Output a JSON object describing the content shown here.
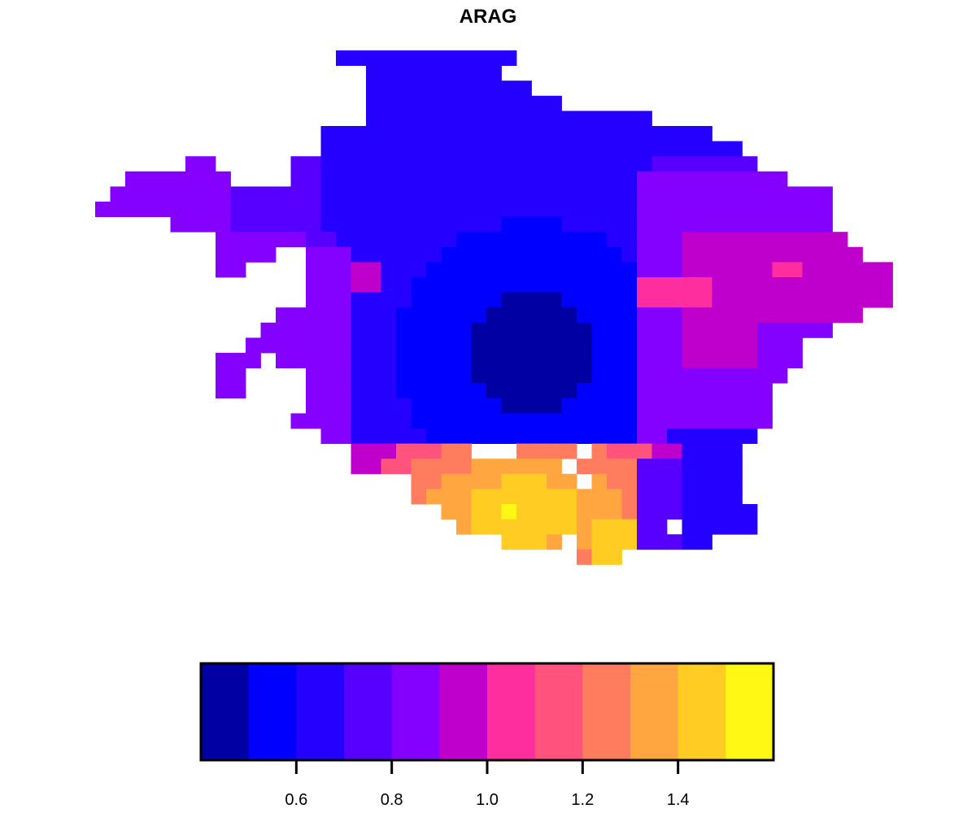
{
  "chart_data": {
    "type": "heatmap",
    "title": "ARAG",
    "description_of_values": "Gridded raster values of ARAG; each cell color encodes a value on the 0.4-1.6 scale",
    "value_range": [
      0.4,
      1.6
    ],
    "color_breaks": [
      0.4,
      0.5,
      0.6,
      0.7,
      0.8,
      0.9,
      1.0,
      1.1,
      1.2,
      1.3,
      1.4,
      1.5,
      1.6
    ],
    "palette": [
      "#0000A3",
      "#0000FF",
      "#2600FF",
      "#5700FF",
      "#8400FF",
      "#BF00CC",
      "#FF2E9E",
      "#FF527C",
      "#FF7C5E",
      "#FFA640",
      "#FFCC24",
      "#FFF714"
    ],
    "legend": {
      "position": "bottom",
      "ticks": [
        0.6,
        0.8,
        1.0,
        1.2,
        1.4
      ],
      "tick_labels": [
        "0.6",
        "0.8",
        "1.0",
        "1.2",
        "1.4"
      ]
    }
  }
}
